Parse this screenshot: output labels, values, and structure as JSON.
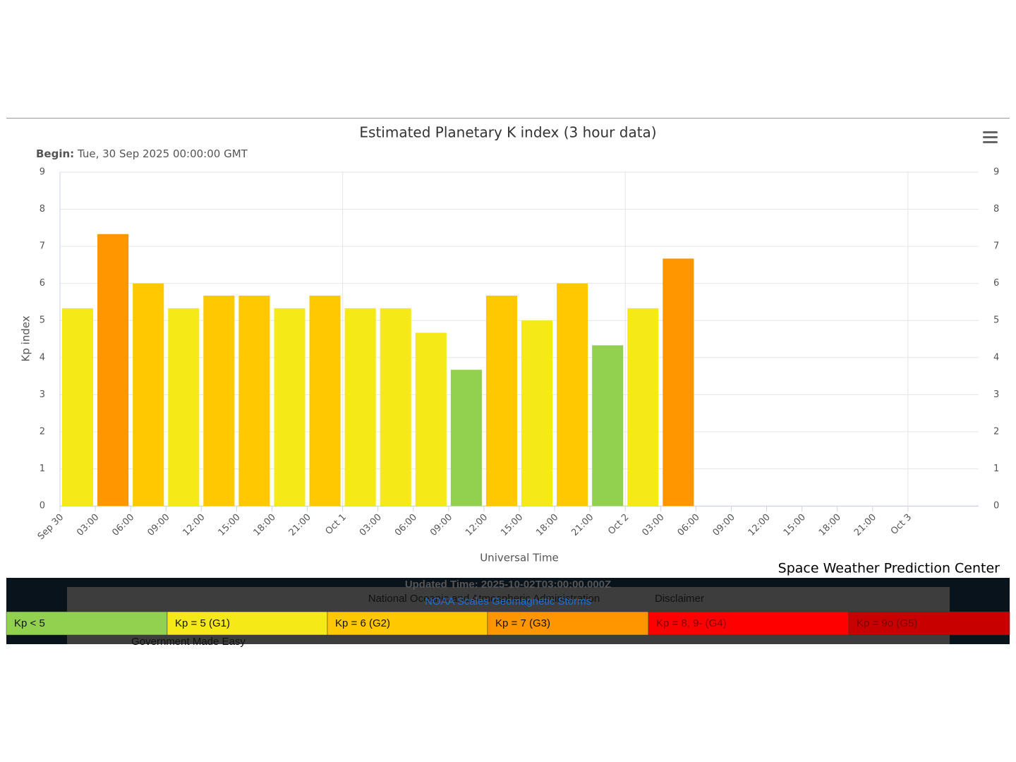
{
  "chart_data": {
    "type": "bar",
    "title": "Estimated Planetary K index (3 hour data)",
    "subtitle_label": "Begin:",
    "subtitle": "Tue, 30 Sep 2025 00:00:00 GMT",
    "y_label": "Kp index",
    "x_label": "Universal Time",
    "credit": "Space Weather Prediction Center",
    "categories": [
      "Sep 30",
      "03:00",
      "06:00",
      "09:00",
      "12:00",
      "15:00",
      "18:00",
      "21:00",
      "Oct 1",
      "03:00",
      "06:00",
      "09:00",
      "12:00",
      "15:00",
      "18:00",
      "21:00",
      "Oct 2",
      "03:00",
      "06:00",
      "09:00",
      "12:00",
      "15:00",
      "18:00",
      "21:00",
      "Oct 3"
    ],
    "values": [
      5.33,
      7.33,
      6.0,
      5.33,
      5.67,
      5.67,
      5.33,
      5.67,
      5.33,
      5.33,
      4.67,
      3.67,
      5.67,
      5.0,
      6.0,
      4.33,
      5.33,
      6.67,
      null,
      null,
      null,
      null,
      null,
      null,
      null
    ],
    "colors": [
      "#f5e917",
      "#ff9600",
      "#ffc800",
      "#f5e917",
      "#ffc800",
      "#ffc800",
      "#f5e917",
      "#ffc800",
      "#f5e917",
      "#f5e917",
      "#f5e917",
      "#92d050",
      "#ffc800",
      "#f5e917",
      "#ffc800",
      "#92d050",
      "#f5e917",
      "#ff9600",
      null,
      null,
      null,
      null,
      null,
      null,
      null
    ],
    "ylim": [
      0,
      9
    ],
    "yticks": [
      0,
      1,
      2,
      3,
      4,
      5,
      6,
      7,
      8,
      9
    ],
    "grid": true,
    "scale": [
      {
        "label": "Kp < 5",
        "color": "#92d050"
      },
      {
        "label": "Kp = 5 (G1)",
        "color": "#f5e917"
      },
      {
        "label": "Kp = 6 (G2)",
        "color": "#ffc800"
      },
      {
        "label": "Kp = 7 (G3)",
        "color": "#ff9600"
      },
      {
        "label": "Kp = 8, 9- (G4)",
        "color": "#ff0000"
      },
      {
        "label": "Kp = 9o (G5)",
        "color": "#c80000"
      }
    ]
  },
  "footer": {
    "updated": "Updated Time: 2025-10-02T03:00:00.000Z",
    "agency": "National Oceanic and Atmospheric Administration",
    "disclaimer": "Disclaimer",
    "link": "NOAA Scales Geomagnetic Storms",
    "usa": "Government Made Easy"
  }
}
